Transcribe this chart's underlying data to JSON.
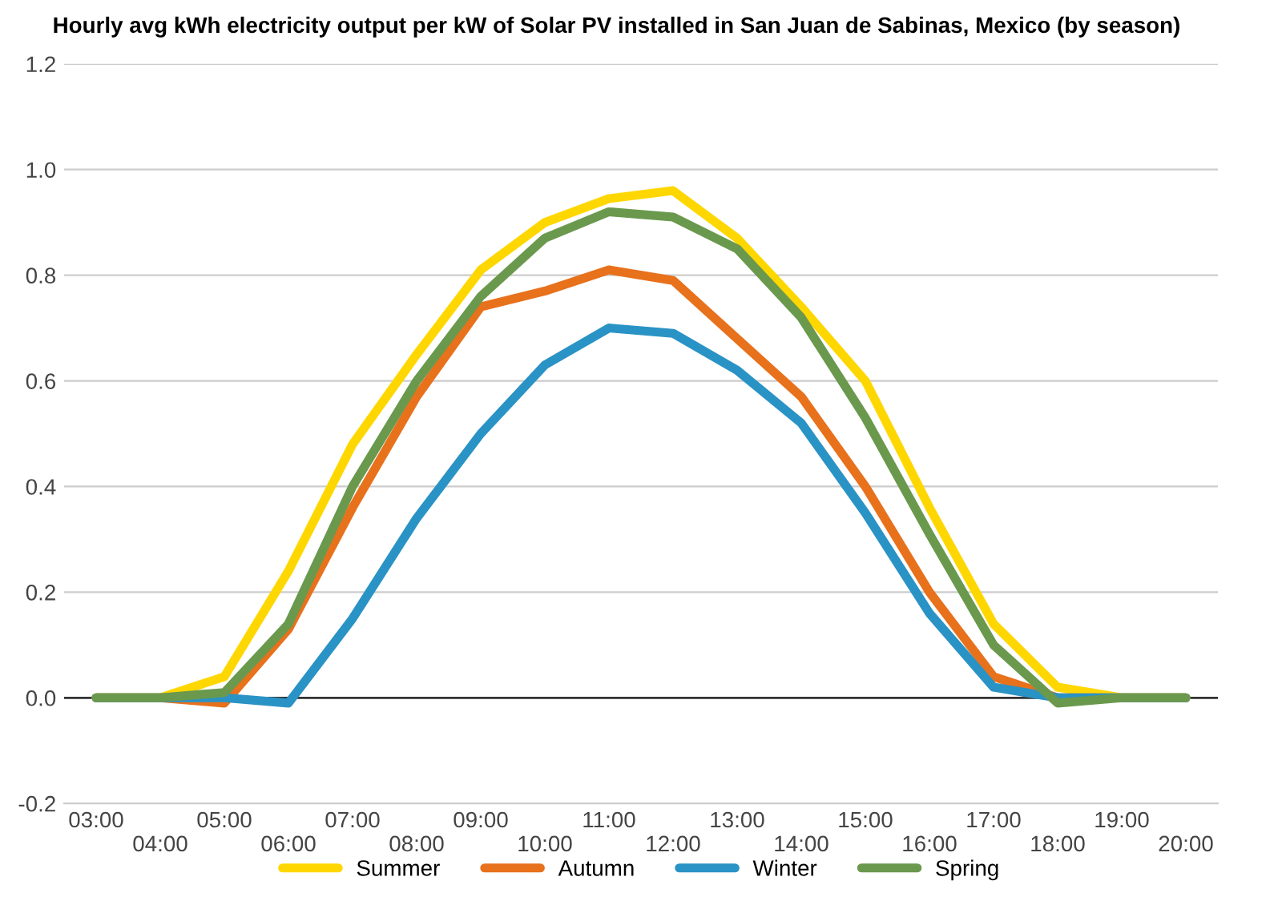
{
  "chart_data": {
    "type": "line",
    "title": "Hourly avg kWh electricity output per kW of Solar PV installed in San Juan de Sabinas, Mexico (by season)",
    "categories": [
      "03:00",
      "04:00",
      "05:00",
      "06:00",
      "07:00",
      "08:00",
      "09:00",
      "10:00",
      "11:00",
      "12:00",
      "13:00",
      "14:00",
      "15:00",
      "16:00",
      "17:00",
      "18:00",
      "19:00",
      "20:00"
    ],
    "series": [
      {
        "name": "Summer",
        "color": "#ffd700",
        "values": [
          0,
          0,
          0.04,
          0.24,
          0.48,
          0.65,
          0.81,
          0.9,
          0.945,
          0.96,
          0.87,
          0.74,
          0.6,
          0.36,
          0.14,
          0.02,
          0,
          0
        ]
      },
      {
        "name": "Autumn",
        "color": "#e8711c",
        "values": [
          0,
          0,
          -0.01,
          0.13,
          0.36,
          0.57,
          0.74,
          0.77,
          0.81,
          0.79,
          0.68,
          0.57,
          0.4,
          0.2,
          0.04,
          0,
          0,
          0
        ]
      },
      {
        "name": "Winter",
        "color": "#2a93c5",
        "values": [
          0,
          0,
          0,
          -0.01,
          0.15,
          0.34,
          0.5,
          0.63,
          0.7,
          0.69,
          0.62,
          0.52,
          0.35,
          0.16,
          0.02,
          0,
          0,
          0
        ]
      },
      {
        "name": "Spring",
        "color": "#6a994e",
        "values": [
          0,
          0,
          0.01,
          0.14,
          0.4,
          0.6,
          0.76,
          0.87,
          0.92,
          0.91,
          0.85,
          0.72,
          0.53,
          0.31,
          0.1,
          -0.01,
          0,
          0
        ]
      }
    ],
    "ylim": [
      -0.2,
      1.2
    ],
    "yticks": [
      {
        "value": -0.2,
        "label": "-0.2"
      },
      {
        "value": 0,
        "label": "0.0"
      },
      {
        "value": 0.2,
        "label": "0.2"
      },
      {
        "value": 0.4,
        "label": "0.4"
      },
      {
        "value": 0.6,
        "label": "0.6"
      },
      {
        "value": 0.8,
        "label": "0.8"
      },
      {
        "value": 1.0,
        "label": "1.0"
      },
      {
        "value": 1.2,
        "label": "1.2"
      }
    ],
    "ref_lines": [
      {
        "axis": "y",
        "value": 0,
        "color": "#333333"
      }
    ],
    "grid": "y",
    "legend": "bottom",
    "line_style": "solid",
    "marker": "none"
  }
}
